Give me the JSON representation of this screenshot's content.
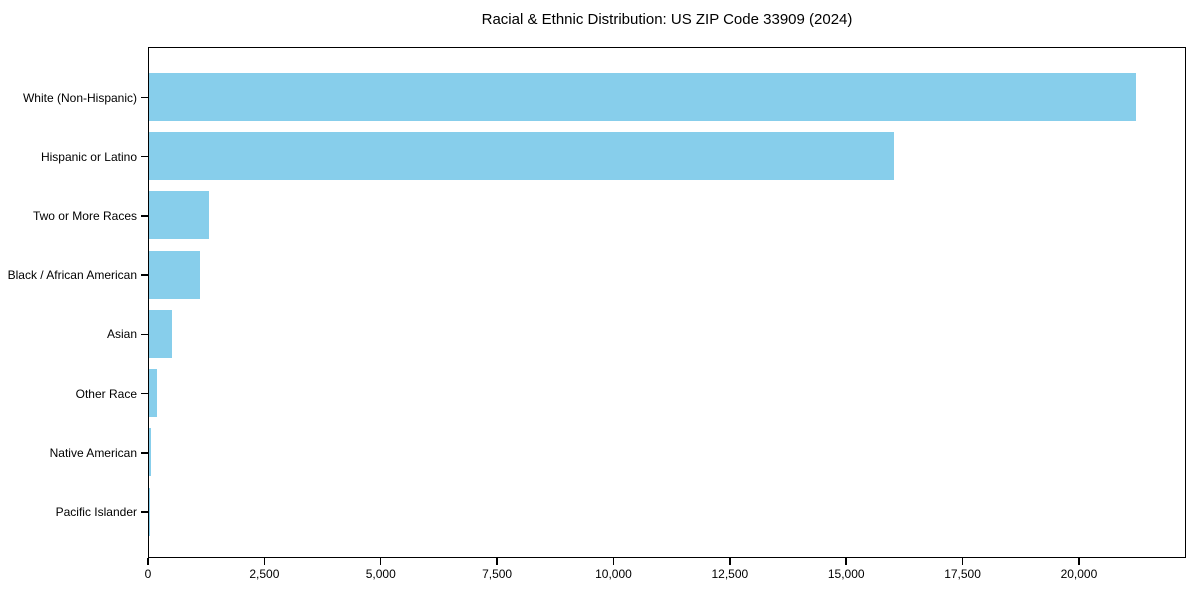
{
  "chart_data": {
    "type": "bar",
    "orientation": "horizontal",
    "title": "Racial & Ethnic Distribution: US ZIP Code 33909 (2024)",
    "categories": [
      "White (Non-Hispanic)",
      "Hispanic or Latino",
      "Two or More Races",
      "Black / African American",
      "Asian",
      "Other Race",
      "Native American",
      "Pacific Islander"
    ],
    "values": [
      21200,
      16000,
      1290,
      1100,
      490,
      180,
      40,
      10
    ],
    "xlabel": "",
    "ylabel": "",
    "xlim": [
      0,
      22300
    ],
    "x_ticks": [
      0,
      2500,
      5000,
      7500,
      10000,
      12500,
      15000,
      17500,
      20000
    ],
    "x_tick_labels": [
      "0",
      "2,500",
      "5,000",
      "7,500",
      "10,000",
      "12,500",
      "15,000",
      "17,500",
      "20,000"
    ],
    "bar_color": "#87CEEB",
    "spine_color": "#000000",
    "text_color": "#000000",
    "background_color": "#ffffff",
    "grid": false,
    "legend": null
  }
}
